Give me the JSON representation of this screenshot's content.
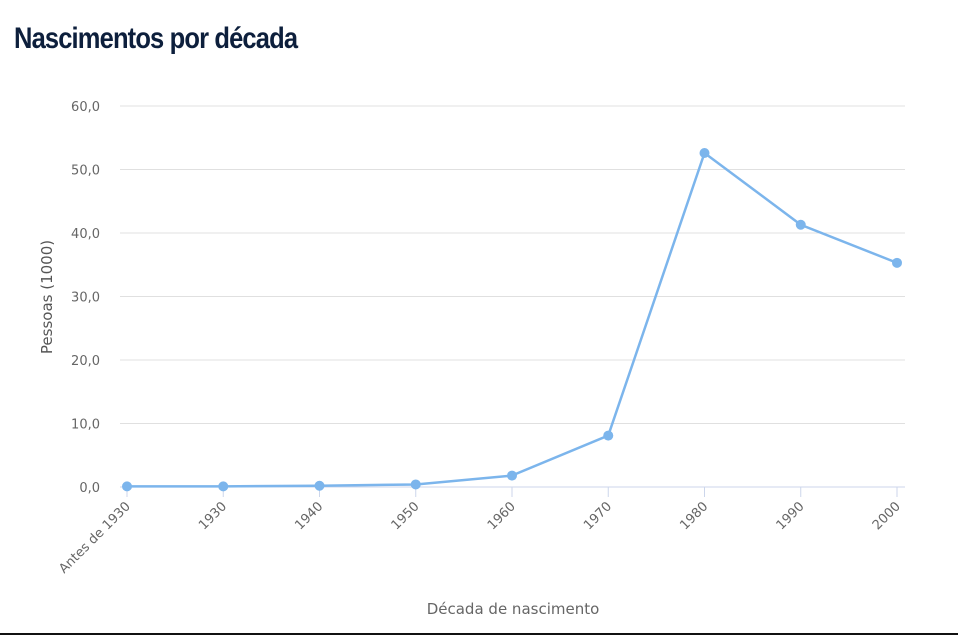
{
  "title": "Nascimentos por década",
  "chart_data": {
    "type": "line",
    "title": "Nascimentos por década",
    "xlabel": "Década de nascimento",
    "ylabel": "Pessoas (1000)",
    "categories": [
      "Antes de 1930",
      "1930",
      "1940",
      "1950",
      "1960",
      "1970",
      "1980",
      "1990",
      "2000"
    ],
    "values": [
      0.1,
      0.1,
      0.2,
      0.4,
      1.8,
      8.1,
      52.6,
      41.3,
      35.3
    ],
    "ylim": [
      0,
      60
    ],
    "yticks": [
      "0,0",
      "10,0",
      "20,0",
      "30,0",
      "40,0",
      "50,0",
      "60,0"
    ],
    "grid": true,
    "legend": "none",
    "color": "#7cb5ec"
  }
}
